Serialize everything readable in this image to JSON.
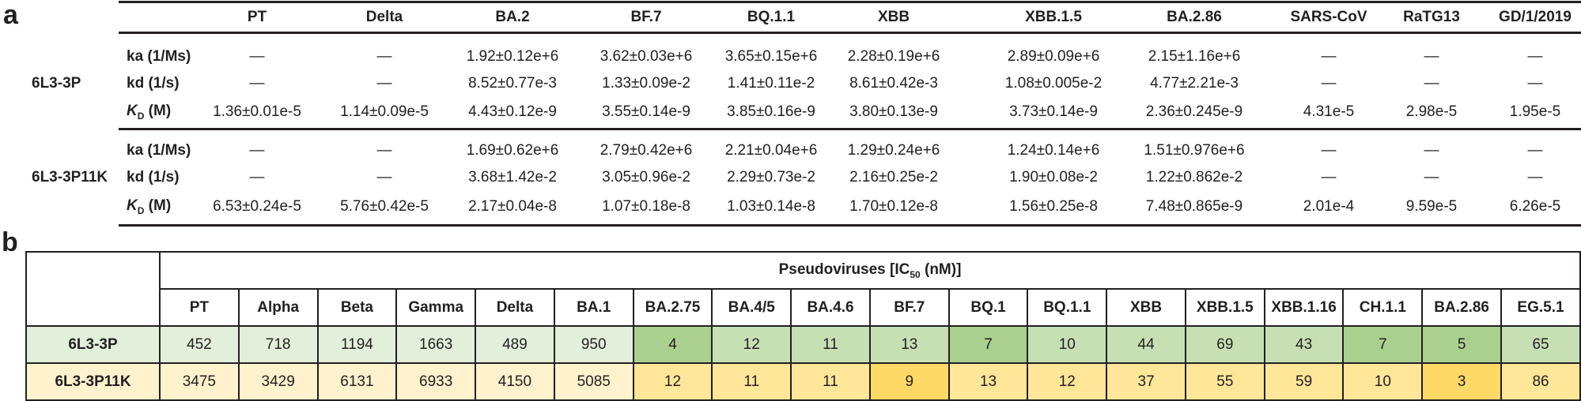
{
  "panel_a": {
    "letter": "a",
    "columns": [
      "PT",
      "Delta",
      "BA.2",
      "BF.7",
      "BQ.1.1",
      "XBB",
      "XBB.1.5",
      "BA.2.86",
      "SARS-CoV",
      "RaTG13",
      "GD/1/2019"
    ],
    "groups": [
      {
        "name": "6L3-3P",
        "rows": [
          {
            "param": "ka (1/Ms)",
            "values": [
              "—",
              "—",
              "1.92±0.12e+6",
              "3.62±0.03e+6",
              "3.65±0.15e+6",
              "2.28±0.19e+6",
              "2.89±0.09e+6",
              "2.15±1.16e+6",
              "—",
              "—",
              "—"
            ]
          },
          {
            "param": "kd (1/s)",
            "values": [
              "—",
              "—",
              "8.52±0.77e-3",
              "1.33±0.09e-2",
              "1.41±0.11e-2",
              "8.61±0.42e-3",
              "1.08±0.005e-2",
              "4.77±2.21e-3",
              "—",
              "—",
              "—"
            ]
          },
          {
            "param_k": "K",
            "param_sub": "D",
            "param_unit": " (M)",
            "values": [
              "1.36±0.01e-5",
              "1.14±0.09e-5",
              "4.43±0.12e-9",
              "3.55±0.14e-9",
              "3.85±0.16e-9",
              "3.80±0.13e-9",
              "3.73±0.14e-9",
              "2.36±0.245e-9",
              "4.31e-5",
              "2.98e-5",
              "1.95e-5"
            ]
          }
        ]
      },
      {
        "name": "6L3-3P11K",
        "rows": [
          {
            "param": "ka (1/Ms)",
            "values": [
              "—",
              "—",
              "1.69±0.62e+6",
              "2.79±0.42e+6",
              "2.21±0.04e+6",
              "1.29±0.24e+6",
              "1.24±0.14e+6",
              "1.51±0.976e+6",
              "—",
              "—",
              "—"
            ]
          },
          {
            "param": "kd (1/s)",
            "values": [
              "—",
              "—",
              "3.68±1.42e-2",
              "3.05±0.96e-2",
              "2.29±0.73e-2",
              "2.16±0.25e-2",
              "1.90±0.08e-2",
              "1.22±0.862e-2",
              "—",
              "—",
              "—"
            ]
          },
          {
            "param_k": "K",
            "param_sub": "D",
            "param_unit": " (M)",
            "values": [
              "6.53±0.24e-5",
              "5.76±0.42e-5",
              "2.17±0.04e-8",
              "1.07±0.18e-8",
              "1.03±0.14e-8",
              "1.70±0.12e-8",
              "1.56±0.25e-8",
              "7.48±0.865e-9",
              "2.01e-4",
              "9.59e-5",
              "6.26e-5"
            ]
          }
        ]
      }
    ]
  },
  "panel_b": {
    "letter": "b",
    "title_main": "Pseudoviruses [IC",
    "title_sub": "50",
    "title_end": " (nM)]",
    "columns": [
      "PT",
      "Alpha",
      "Beta",
      "Gamma",
      "Delta",
      "BA.1",
      "BA.2.75",
      "BA.4/5",
      "BA.4.6",
      "BF.7",
      "BQ.1",
      "BQ.1.1",
      "XBB",
      "XBB.1.5",
      "XBB.1.16",
      "CH.1.1",
      "BA.2.86",
      "EG.5.1"
    ],
    "palettes": {
      "green": [
        "#e2efda",
        "#c6e0b4",
        "#a9d08e"
      ],
      "yellow": [
        "#fff2cc",
        "#ffe699",
        "#ffd966"
      ]
    },
    "rows": [
      {
        "name": "6L3-3P",
        "palette": "green",
        "values": [
          "452",
          "718",
          "1194",
          "1663",
          "489",
          "950",
          "4",
          "12",
          "11",
          "13",
          "7",
          "10",
          "44",
          "69",
          "43",
          "7",
          "5",
          "65"
        ],
        "shade": [
          0,
          0,
          0,
          0,
          0,
          0,
          2,
          1,
          1,
          1,
          2,
          1,
          1,
          1,
          1,
          2,
          2,
          1
        ]
      },
      {
        "name": "6L3-3P11K",
        "palette": "yellow",
        "values": [
          "3475",
          "3429",
          "6131",
          "6933",
          "4150",
          "5085",
          "12",
          "11",
          "11",
          "9",
          "13",
          "12",
          "37",
          "55",
          "59",
          "10",
          "3",
          "86"
        ],
        "shade": [
          0,
          0,
          0,
          0,
          0,
          0,
          1,
          1,
          1,
          2,
          1,
          1,
          1,
          1,
          1,
          1,
          2,
          1
        ]
      }
    ]
  }
}
